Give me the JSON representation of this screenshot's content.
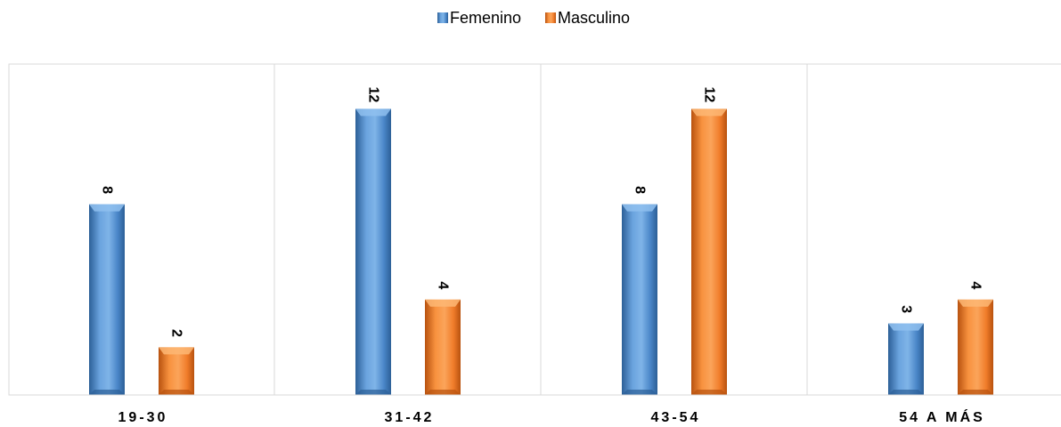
{
  "chart_data": {
    "type": "bar",
    "categories": [
      "19-30",
      "31-42",
      "43-54",
      "54 A MÁS"
    ],
    "series": [
      {
        "name": "Femenino",
        "values": [
          8,
          12,
          8,
          3
        ],
        "color": "#4a86c8"
      },
      {
        "name": "Masculino",
        "values": [
          2,
          4,
          12,
          4
        ],
        "color": "#f07c2a"
      }
    ],
    "ylim": [
      0,
      12
    ],
    "grid": false,
    "legend": "top-center",
    "data_labels": true,
    "data_label_rotation": "vertical"
  }
}
